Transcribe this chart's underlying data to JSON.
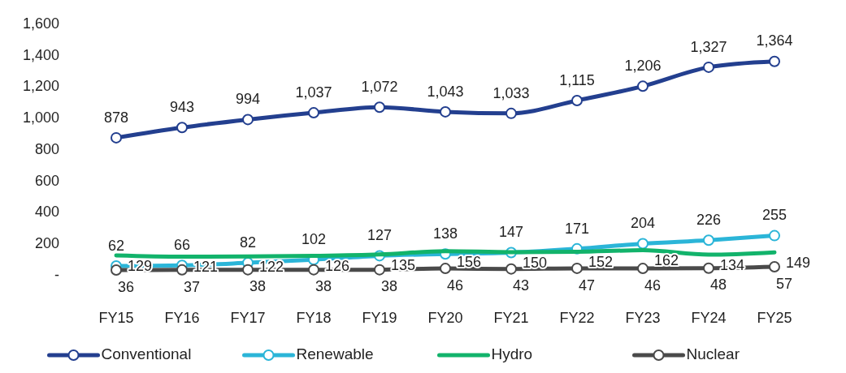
{
  "chart_data": {
    "type": "line",
    "categories": [
      "FY15",
      "FY16",
      "FY17",
      "FY18",
      "FY19",
      "FY20",
      "FY21",
      "FY22",
      "FY23",
      "FY24",
      "FY25"
    ],
    "series": [
      {
        "name": "Conventional",
        "color": "#233f8f",
        "marker": "circle",
        "values": [
          878,
          943,
          994,
          1037,
          1072,
          1043,
          1033,
          1115,
          1206,
          1327,
          1364
        ],
        "value_labels": [
          "878",
          "943",
          "994",
          "1,037",
          "1,072",
          "1,043",
          "1,033",
          "1,115",
          "1,206",
          "1,327",
          "1,364"
        ]
      },
      {
        "name": "Renewable",
        "color": "#2bb5d8",
        "marker": "circle",
        "values": [
          62,
          66,
          82,
          102,
          127,
          138,
          147,
          171,
          204,
          226,
          255
        ]
      },
      {
        "name": "Hydro",
        "color": "#12b36b",
        "marker": "none",
        "values": [
          129,
          121,
          122,
          126,
          135,
          156,
          150,
          152,
          162,
          134,
          149
        ]
      },
      {
        "name": "Nuclear",
        "color": "#4a4a4a",
        "marker": "circle",
        "values": [
          36,
          37,
          38,
          38,
          38,
          46,
          43,
          47,
          46,
          48,
          57
        ]
      }
    ],
    "ylim": [
      0,
      1600
    ],
    "yticks": [
      {
        "value": 0,
        "label": "-"
      },
      {
        "value": 200,
        "label": "200"
      },
      {
        "value": 400,
        "label": "400"
      },
      {
        "value": 600,
        "label": "600"
      },
      {
        "value": 800,
        "label": "800"
      },
      {
        "value": 1000,
        "label": "1,000"
      },
      {
        "value": 1200,
        "label": "1,200"
      },
      {
        "value": 1400,
        "label": "1,400"
      },
      {
        "value": 1600,
        "label": "1,600"
      }
    ],
    "data_labels": true,
    "legend": "bottom",
    "grid": false,
    "line_style": "solid"
  }
}
